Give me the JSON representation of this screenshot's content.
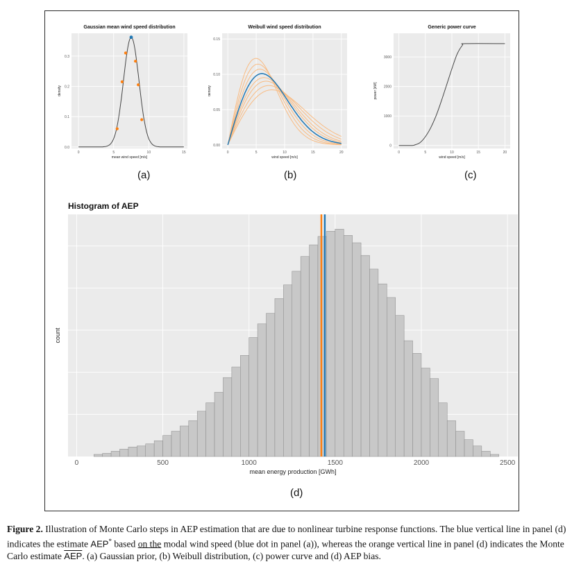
{
  "figure": {
    "panel_labels": [
      "(a)",
      "(b)",
      "(c)",
      "(d)"
    ]
  },
  "colors": {
    "blue": "#1f77b4",
    "orange": "#ff7f0e",
    "orange_light": "#f9bb82",
    "panel_bg": "#ebebeb",
    "bar_fill": "#c8c8c8"
  },
  "chart_data": [
    {
      "id": "a",
      "type": "line",
      "title": "Gaussian mean wind speed distribution",
      "xlabel": "mean wind speed [m/s]",
      "ylabel": "density",
      "xlim": [
        -1,
        15.5
      ],
      "ylim": [
        -0.005,
        0.375
      ],
      "xticks": [
        0,
        5,
        10,
        15
      ],
      "yticks": [
        0.0,
        0.1,
        0.2,
        0.3
      ],
      "ytick_labels": [
        "0.0",
        "0.1",
        "0.2",
        "0.3"
      ],
      "gaussian": {
        "mean": 7.5,
        "sd": 1.1
      },
      "modal_point": {
        "x": 7.5,
        "y": 0.362
      },
      "samples": [
        {
          "x": 5.5,
          "y": 0.06
        },
        {
          "x": 6.2,
          "y": 0.215
        },
        {
          "x": 6.7,
          "y": 0.31
        },
        {
          "x": 8.1,
          "y": 0.283
        },
        {
          "x": 8.5,
          "y": 0.205
        },
        {
          "x": 9.0,
          "y": 0.09
        }
      ]
    },
    {
      "id": "b",
      "type": "line",
      "title": "Weibull wind speed distribution",
      "xlabel": "wind speed [m/s]",
      "ylabel": "density",
      "xlim": [
        -1,
        21
      ],
      "ylim": [
        -0.005,
        0.158
      ],
      "xticks": [
        0,
        5,
        10,
        15,
        20
      ],
      "yticks": [
        0.0,
        0.05,
        0.1,
        0.15
      ],
      "ytick_labels": [
        "0.00",
        "0.05",
        "0.10",
        "0.15"
      ],
      "blue_curve": {
        "k": 2,
        "lambda": 8.5
      },
      "orange_curves": [
        {
          "k": 2,
          "lambda": 7.0
        },
        {
          "k": 2,
          "lambda": 7.5
        },
        {
          "k": 2,
          "lambda": 8.0
        },
        {
          "k": 2,
          "lambda": 9.0
        },
        {
          "k": 2,
          "lambda": 9.5
        },
        {
          "k": 2,
          "lambda": 10.2
        },
        {
          "k": 2,
          "lambda": 11.0
        }
      ]
    },
    {
      "id": "c",
      "type": "line",
      "title": "Generic power curve",
      "xlabel": "wind speed [m/s]",
      "ylabel": "power [kW]",
      "xlim": [
        -1,
        21
      ],
      "ylim": [
        -100,
        3800
      ],
      "xticks": [
        0,
        5,
        10,
        15,
        20
      ],
      "yticks": [
        0,
        1000,
        2000,
        3000
      ],
      "ytick_labels": [
        "0",
        "1000",
        "2000",
        "3000"
      ],
      "points": [
        [
          0,
          0
        ],
        [
          2.5,
          0
        ],
        [
          3,
          20
        ],
        [
          4,
          100
        ],
        [
          5,
          300
        ],
        [
          6,
          600
        ],
        [
          7,
          1000
        ],
        [
          8,
          1500
        ],
        [
          9,
          2050
        ],
        [
          10,
          2600
        ],
        [
          11,
          3100
        ],
        [
          12,
          3400
        ],
        [
          12.5,
          3450
        ],
        [
          20,
          3450
        ]
      ]
    },
    {
      "id": "d",
      "type": "bar",
      "title": "Histogram of AEP",
      "xlabel": "mean energy production [GWh]",
      "ylabel": "count",
      "xlim": [
        -50,
        2560
      ],
      "xticks": [
        0,
        500,
        1000,
        1500,
        2000,
        2500
      ],
      "bin_width": 50,
      "bin_starts": [
        100,
        150,
        200,
        250,
        300,
        350,
        400,
        450,
        500,
        550,
        600,
        650,
        700,
        750,
        800,
        850,
        900,
        950,
        1000,
        1050,
        1100,
        1150,
        1200,
        1250,
        1300,
        1350,
        1400,
        1450,
        1500,
        1550,
        1600,
        1650,
        1700,
        1750,
        1800,
        1850,
        1900,
        1950,
        2000,
        2050,
        2100,
        2150,
        2200,
        2250,
        2300,
        2350,
        2400
      ],
      "counts": [
        2,
        3,
        5,
        7,
        9,
        10,
        12,
        15,
        20,
        24,
        29,
        34,
        43,
        51,
        61,
        75,
        85,
        96,
        113,
        126,
        136,
        150,
        163,
        176,
        190,
        201,
        209,
        214,
        216,
        210,
        203,
        191,
        178,
        164,
        151,
        134,
        110,
        98,
        84,
        74,
        51,
        34,
        24,
        16,
        10,
        5,
        2
      ],
      "ylim": [
        0,
        230
      ],
      "vlines": [
        {
          "x": 1420,
          "color": "#ff7f0e"
        },
        {
          "x": 1440,
          "color": "#1f77b4"
        }
      ]
    }
  ],
  "caption": {
    "label": "Figure 2.",
    "t1": "Illustration of Monte Carlo steps in AEP estimation that are due to nonlinear turbine response functions. The blue vertical line in panel (d) indicates the estimate ",
    "aep": "AEP",
    "sup": "*",
    "t2": " based ",
    "on_the": "on the",
    "t3": " modal wind speed (blue dot in panel (a)), whereas the orange vertical line in panel (d) indicates the Monte Carlo estimate ",
    "aep_bar": "AEP",
    "t4": ". (a) Gaussian prior, (b) Weibull distribution, (c) power curve and (d) AEP bias."
  }
}
